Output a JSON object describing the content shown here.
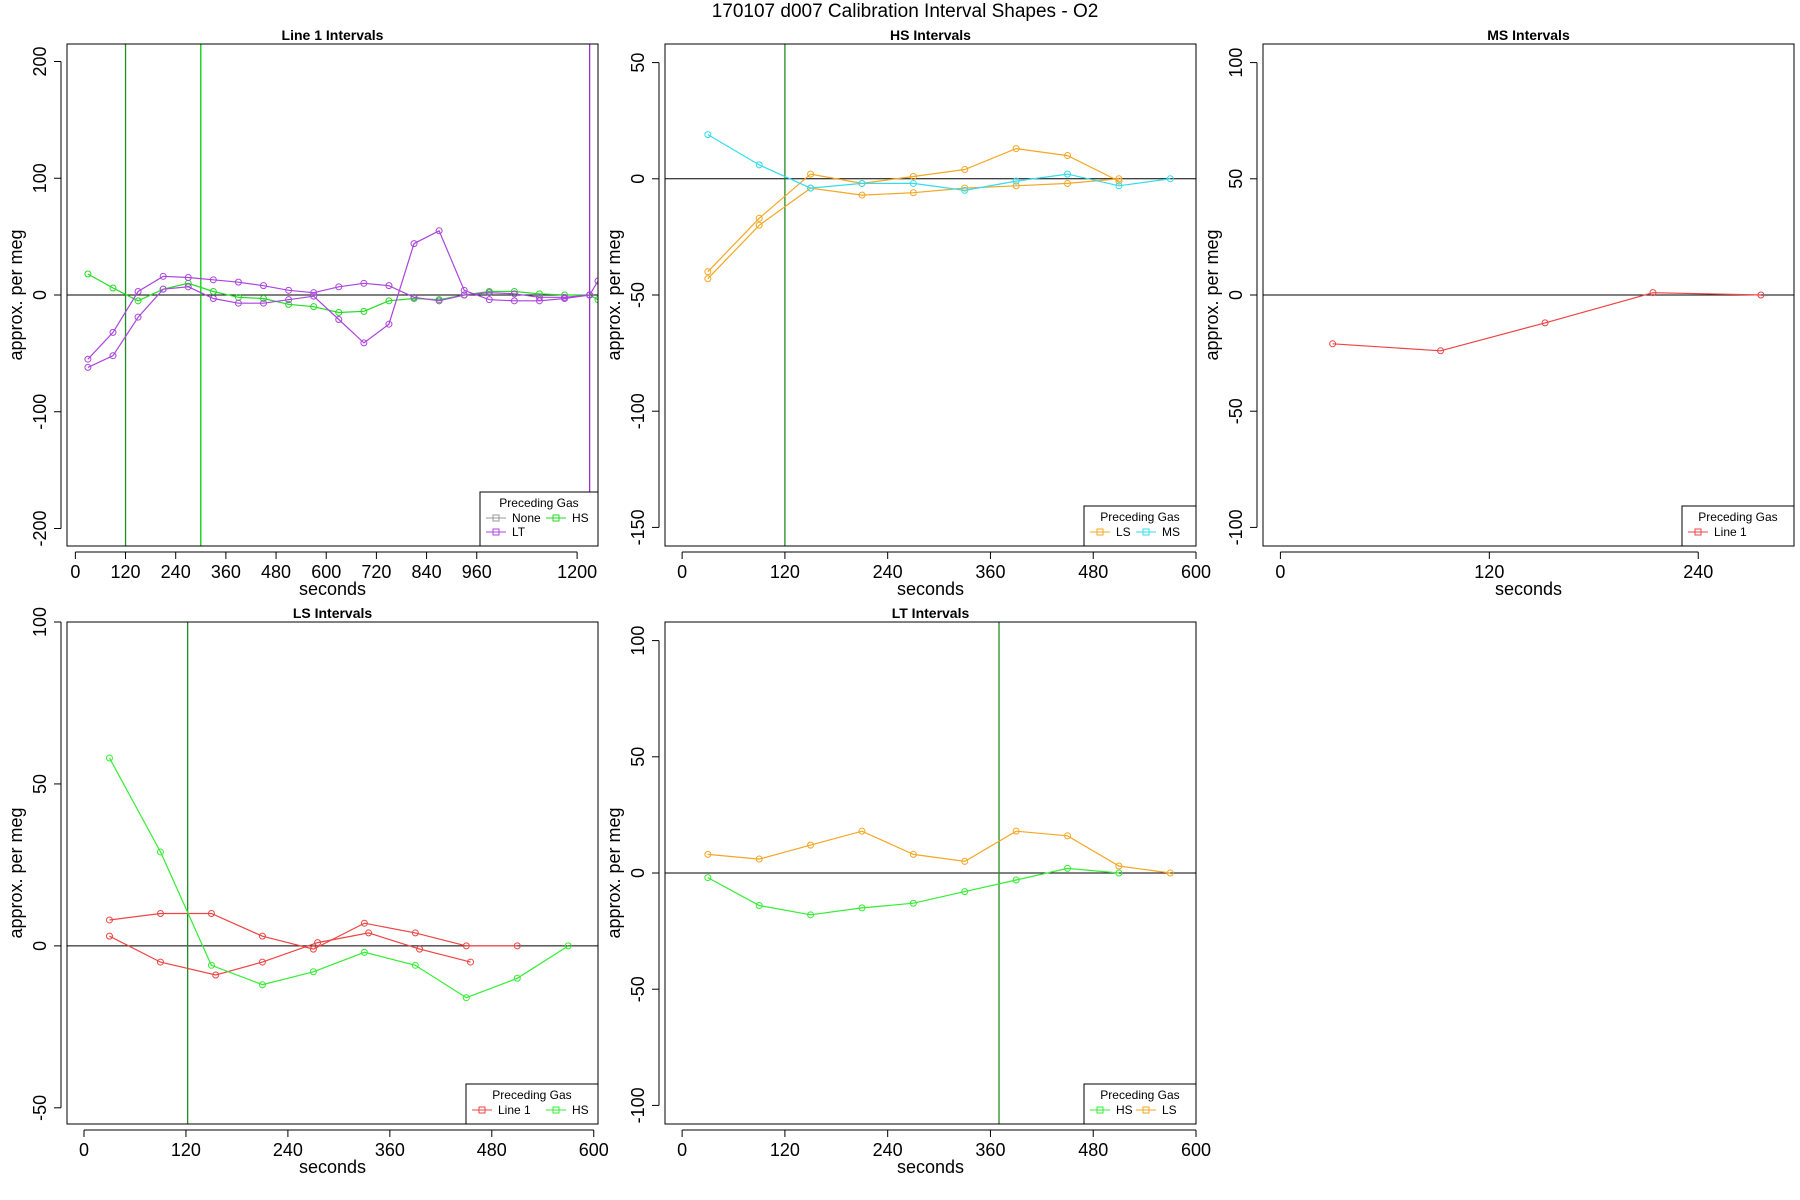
{
  "figure_title": "170107   d007   Calibration Interval Shapes - O2",
  "chart_data": [
    {
      "type": "line",
      "title": "Line 1 Intervals",
      "xlabel": "seconds",
      "ylabel": "approx. per meg",
      "xlim": [
        -20,
        1250
      ],
      "ylim": [
        -215,
        215
      ],
      "xticks": [
        0,
        120,
        240,
        360,
        480,
        600,
        720,
        840,
        960,
        1200
      ],
      "yticks": [
        -200,
        -100,
        0,
        100,
        200
      ],
      "hline": 0,
      "vlines": [
        {
          "x": 120,
          "color": "#228B22"
        },
        {
          "x": 300,
          "color": "#00CC00"
        },
        {
          "x": 1230,
          "color": "#9932CC"
        }
      ],
      "legend_title": "Preceding Gas",
      "legend_rows": [
        [
          "None",
          "HS"
        ],
        [
          "LT"
        ]
      ],
      "series": [
        {
          "name": "None",
          "color": "#999999",
          "x": [],
          "y": []
        },
        {
          "name": "HS",
          "color": "#22DD22",
          "x": [
            30,
            90,
            150,
            210,
            270,
            330,
            390,
            450,
            510,
            570,
            630,
            690,
            750,
            810,
            870,
            930,
            990,
            1050,
            1110,
            1170,
            1230,
            1250
          ],
          "y": [
            18,
            6,
            -5,
            5,
            10,
            3,
            -2,
            -3,
            -8,
            -10,
            -15,
            -14,
            -5,
            -3,
            -4,
            0,
            3,
            3,
            1,
            0,
            0,
            -4
          ]
        },
        {
          "name": "LT",
          "color": "#AA44DD",
          "x": [
            30,
            90,
            150,
            210,
            270,
            330,
            390,
            450,
            510,
            570,
            630,
            690,
            750,
            810,
            870,
            930,
            990,
            1050,
            1110,
            1170,
            1230,
            1250
          ],
          "y": [
            -55,
            -32,
            3,
            16,
            15,
            13,
            11,
            8,
            4,
            2,
            7,
            10,
            8,
            -2,
            -5,
            0,
            2,
            1,
            -2,
            -2,
            0,
            12
          ]
        },
        {
          "name": "LT",
          "color": "#AA44DD",
          "x": [
            30,
            90,
            150,
            210,
            270,
            330,
            390,
            450,
            510,
            570,
            630,
            690,
            750,
            810,
            870,
            930,
            990,
            1050,
            1110,
            1170,
            1230
          ],
          "y": [
            -62,
            -52,
            -19,
            5,
            7,
            -3,
            -7,
            -7,
            -4,
            -1,
            -21,
            -41,
            -25,
            44,
            55,
            4,
            -4,
            -5,
            -5,
            -3,
            0
          ]
        }
      ]
    },
    {
      "type": "line",
      "title": "HS Intervals",
      "xlabel": "seconds",
      "ylabel": "approx. per meg",
      "xlim": [
        -20,
        600
      ],
      "ylim": [
        -158,
        58
      ],
      "xticks": [
        0,
        120,
        240,
        360,
        480,
        600
      ],
      "yticks": [
        -150,
        -100,
        -50,
        0,
        50
      ],
      "hline": 0,
      "vlines": [
        {
          "x": 120,
          "color": "#228B22"
        }
      ],
      "legend_title": "Preceding Gas",
      "legend_rows": [
        [
          "LS",
          "MS"
        ]
      ],
      "series": [
        {
          "name": "LS",
          "color": "#F5A623",
          "x": [
            30,
            90,
            150,
            210,
            270,
            330,
            390,
            450,
            510
          ],
          "y": [
            -40,
            -17,
            2,
            -2,
            1,
            4,
            13,
            10,
            -1
          ]
        },
        {
          "name": "LS",
          "color": "#F5A623",
          "x": [
            30,
            90,
            150,
            210,
            270,
            330,
            390,
            450,
            510
          ],
          "y": [
            -43,
            -20,
            -4,
            -7,
            -6,
            -4,
            -3,
            -2,
            0
          ]
        },
        {
          "name": "MS",
          "color": "#33DDEE",
          "x": [
            30,
            90,
            150,
            210,
            270,
            330,
            390,
            450,
            510,
            570
          ],
          "y": [
            19,
            6,
            -4,
            -2,
            -2,
            -5,
            -1,
            2,
            -3,
            0
          ]
        }
      ]
    },
    {
      "type": "line",
      "title": "MS Intervals",
      "xlabel": "seconds",
      "ylabel": "approx. per meg",
      "xlim": [
        -10,
        295
      ],
      "ylim": [
        -108,
        108
      ],
      "xticks": [
        0,
        120,
        240
      ],
      "yticks": [
        -100,
        -50,
        0,
        50,
        100
      ],
      "hline": 0,
      "vlines": [],
      "legend_title": "Preceding Gas",
      "legend_rows": [
        [
          "Line 1"
        ]
      ],
      "series": [
        {
          "name": "Line 1",
          "color": "#EE4444",
          "x": [
            30,
            92,
            152,
            214,
            276
          ],
          "y": [
            -21,
            -24,
            -12,
            1,
            0
          ]
        }
      ]
    },
    {
      "type": "line",
      "title": "LS Intervals",
      "xlabel": "seconds",
      "ylabel": "approx. per meg",
      "xlim": [
        -20,
        605
      ],
      "ylim": [
        -55,
        100
      ],
      "xticks": [
        0,
        120,
        240,
        360,
        480,
        600
      ],
      "yticks": [
        -50,
        0,
        50,
        100
      ],
      "hline": 0,
      "vlines": [
        {
          "x": 122,
          "color": "#228B22"
        }
      ],
      "legend_title": "Preceding Gas",
      "legend_rows": [
        [
          "Line 1",
          "HS"
        ]
      ],
      "series": [
        {
          "name": "Line 1",
          "color": "#EE4444",
          "x": [
            30,
            90,
            150,
            210,
            270,
            330,
            390,
            450,
            510
          ],
          "y": [
            8,
            10,
            10,
            3,
            -1,
            7,
            4,
            0,
            0
          ]
        },
        {
          "name": "Line 1",
          "color": "#EE4444",
          "x": [
            30,
            90,
            155,
            210,
            275,
            335,
            395,
            455
          ],
          "y": [
            3,
            -5,
            -9,
            -5,
            1,
            4,
            -1,
            -5
          ]
        },
        {
          "name": "HS",
          "color": "#33EE33",
          "x": [
            30,
            90,
            150,
            210,
            270,
            330,
            390,
            450,
            510,
            570
          ],
          "y": [
            58,
            29,
            -6,
            -12,
            -8,
            -2,
            -6,
            -16,
            -10,
            0
          ]
        }
      ]
    },
    {
      "type": "line",
      "title": "LT Intervals",
      "xlabel": "seconds",
      "ylabel": "approx. per meg",
      "xlim": [
        -20,
        600
      ],
      "ylim": [
        -108,
        108
      ],
      "xticks": [
        0,
        120,
        240,
        360,
        480,
        600
      ],
      "yticks": [
        -100,
        -50,
        0,
        50,
        100
      ],
      "hline": 0,
      "vlines": [
        {
          "x": 370,
          "color": "#228B22"
        }
      ],
      "legend_title": "Preceding Gas",
      "legend_rows": [
        [
          "HS",
          "LS"
        ]
      ],
      "series": [
        {
          "name": "HS",
          "color": "#33EE33",
          "x": [
            30,
            90,
            150,
            210,
            270,
            330,
            390,
            450,
            510
          ],
          "y": [
            -2,
            -14,
            -18,
            -15,
            -13,
            -8,
            -3,
            2,
            0
          ]
        },
        {
          "name": "LS",
          "color": "#F5A623",
          "x": [
            30,
            90,
            150,
            210,
            270,
            330,
            390,
            450,
            510,
            570
          ],
          "y": [
            8,
            6,
            12,
            18,
            8,
            5,
            18,
            16,
            3,
            0
          ]
        }
      ]
    }
  ]
}
